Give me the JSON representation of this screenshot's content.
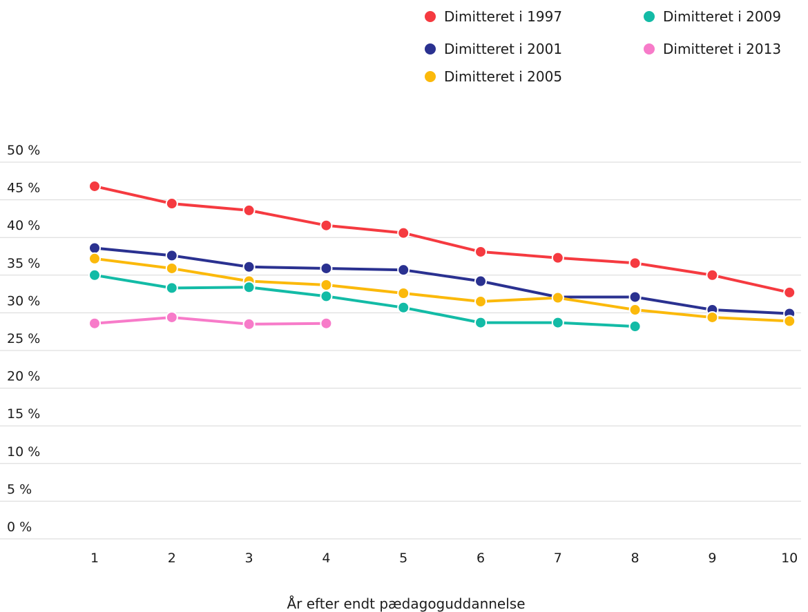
{
  "chart_data": {
    "type": "line",
    "title": "",
    "xlabel": "År efter endt pædagoguddannelse",
    "ylabel": "",
    "x": [
      "1",
      "2",
      "3",
      "4",
      "5",
      "6",
      "7",
      "8",
      "9",
      "10"
    ],
    "ylim": [
      0,
      50
    ],
    "yticks": [
      "0 %",
      "5 %",
      "10 %",
      "15 %",
      "20 %",
      "25 %",
      "30 %",
      "35 %",
      "40 %",
      "45 %",
      "50 %"
    ],
    "grid": true,
    "legend_position": "top-right",
    "series": [
      {
        "name": "Dimitteret i 1997",
        "color": "#f53a40",
        "values": [
          46.8,
          44.5,
          43.6,
          41.6,
          40.6,
          38.1,
          37.3,
          36.6,
          35.0,
          32.7
        ]
      },
      {
        "name": "Dimitteret i 2001",
        "color": "#2a3190",
        "values": [
          38.6,
          37.6,
          36.1,
          35.9,
          35.7,
          34.2,
          32.1,
          32.1,
          30.4,
          29.9
        ]
      },
      {
        "name": "Dimitteret i 2005",
        "color": "#fbb90b",
        "values": [
          37.2,
          35.9,
          34.2,
          33.7,
          32.6,
          31.5,
          32.0,
          30.4,
          29.4,
          28.9
        ]
      },
      {
        "name": "Dimitteret i 2009",
        "color": "#13bba6",
        "values": [
          35.0,
          33.3,
          33.4,
          32.2,
          30.7,
          28.7,
          28.7,
          28.2,
          null,
          null
        ]
      },
      {
        "name": "Dimitteret i 2013",
        "color": "#f77bc9",
        "values": [
          28.6,
          29.4,
          28.5,
          28.6,
          null,
          null,
          null,
          null,
          null,
          null
        ]
      }
    ]
  }
}
